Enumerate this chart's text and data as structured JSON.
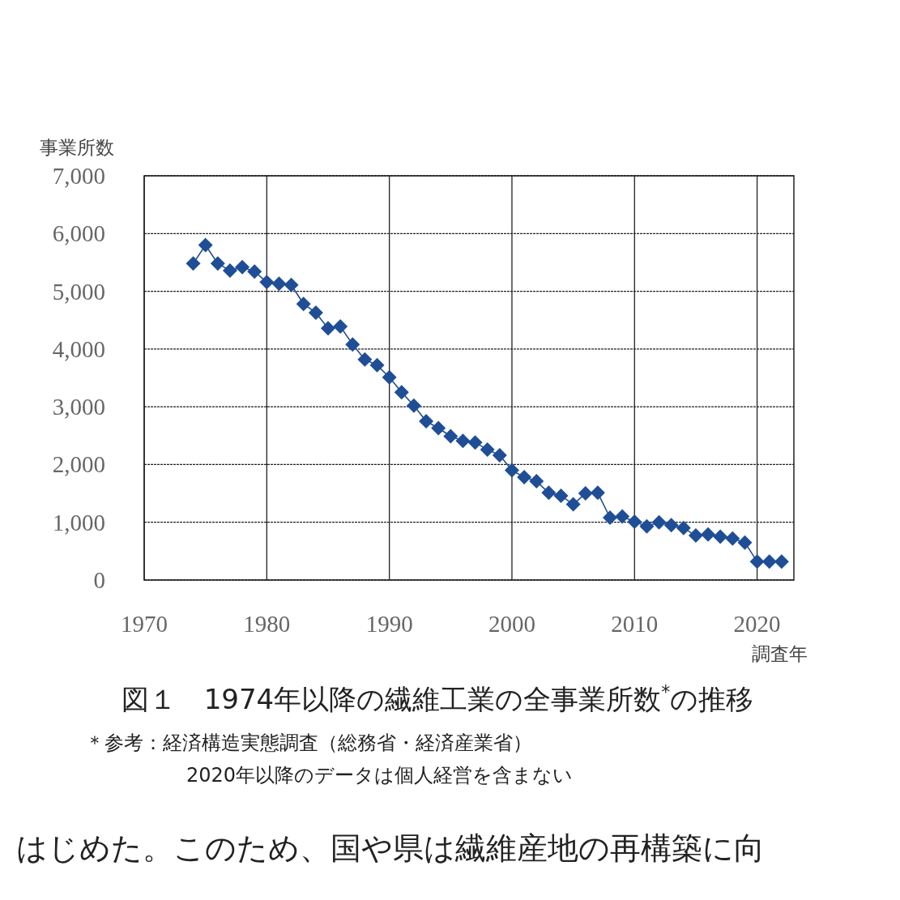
{
  "chart_data": {
    "type": "line",
    "title": "図１　1974年以降の繊維工業の全事業所数$^{*}$の推移",
    "xlabel": "調査年",
    "ylabel": "事業所数",
    "annotations": [
      "＊参考：経済構造実態調査（総務省・経済産業省）",
      "2020年以降のデータは個人経営を含まない",
      "はじめた。このため、国や県は繊維産地の再構築に向"
    ],
    "x": [
      1974,
      1975,
      1976,
      1977,
      1978,
      1979,
      1980,
      1981,
      1982,
      1983,
      1984,
      1985,
      1986,
      1987,
      1988,
      1989,
      1990,
      1991,
      1992,
      1993,
      1994,
      1995,
      1996,
      1997,
      1998,
      1999,
      2000,
      2001,
      2002,
      2003,
      2004,
      2005,
      2006,
      2007,
      2008,
      2009,
      2010,
      2011,
      2012,
      2013,
      2014,
      2015,
      2016,
      2017,
      2018,
      2019,
      2020,
      2021,
      2022
    ],
    "series": [
      {
        "color": "#1f4e96",
        "values": [
          5480,
          5800,
          5480,
          5360,
          5420,
          5340,
          5160,
          5130,
          5110,
          4780,
          4630,
          4360,
          4390,
          4080,
          3820,
          3720,
          3510,
          3250,
          3020,
          2750,
          2630,
          2490,
          2410,
          2380,
          2260,
          2160,
          1900,
          1780,
          1710,
          1510,
          1460,
          1310,
          1500,
          1510,
          1080,
          1100,
          1010,
          930,
          1000,
          950,
          900,
          770,
          790,
          750,
          720,
          650,
          320,
          320,
          320
        ]
      }
    ],
    "xlim": [
      1970,
      2023
    ],
    "xticks": [
      1970,
      1980,
      1990,
      2000,
      2010,
      2020
    ],
    "ylim": [
      0,
      7000
    ],
    "yticks": [
      0,
      {
        "value": 1000,
        "label": "1,000"
      },
      {
        "value": 2000,
        "label": "2,000"
      },
      {
        "value": 3000,
        "label": "3,000"
      },
      {
        "value": 4000,
        "label": "4,000"
      },
      {
        "value": 5000,
        "label": "5,000"
      },
      {
        "value": 6000,
        "label": "6,000"
      },
      {
        "value": 7000,
        "label": "7,000"
      }
    ],
    "grid": true,
    "marker": "diamond",
    "line_style": "solid"
  }
}
